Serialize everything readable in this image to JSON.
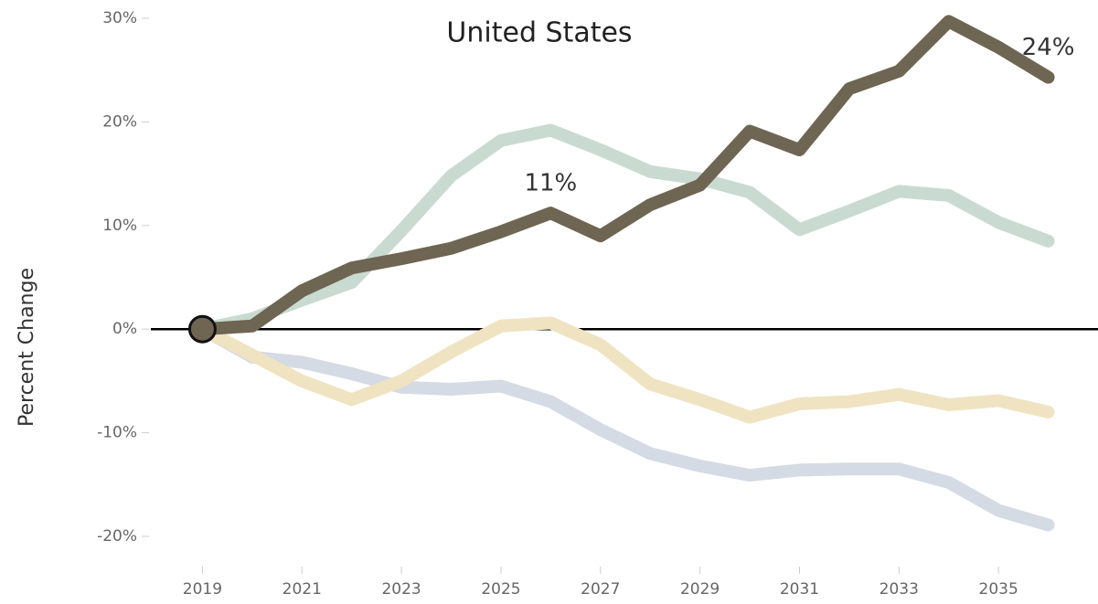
{
  "chart_data": {
    "type": "line",
    "title": "United States",
    "y_label": "Percent Change",
    "x": [
      2019,
      2020,
      2021,
      2022,
      2023,
      2024,
      2025,
      2026,
      2027,
      2028,
      2029,
      2030,
      2031,
      2032,
      2033,
      2034,
      2035,
      2036
    ],
    "series": [
      {
        "color": "#d5dbe4",
        "values": [
          0,
          -2.7,
          -3.2,
          -4.3,
          -5.6,
          -5.8,
          -5.5,
          -7.0,
          -9.7,
          -12.0,
          -13.2,
          -14.1,
          -13.6,
          -13.5,
          -13.5,
          -14.8,
          -17.5,
          -18.9
        ]
      },
      {
        "color": "#efe3c2",
        "values": [
          0,
          -2.5,
          -5.0,
          -6.8,
          -5.0,
          -2.2,
          0.3,
          0.6,
          -1.5,
          -5.3,
          -6.8,
          -8.5,
          -7.2,
          -7.0,
          -6.3,
          -7.3,
          -6.9,
          -8.0
        ]
      },
      {
        "color": "#c9dbd1",
        "values": [
          0,
          1.0,
          2.8,
          4.5,
          9.5,
          14.8,
          18.2,
          19.2,
          17.3,
          15.2,
          14.5,
          13.2,
          9.6,
          11.4,
          13.3,
          12.9,
          10.3,
          8.5
        ]
      },
      {
        "color": "#6e6553",
        "values": [
          0,
          0.3,
          3.7,
          5.9,
          6.8,
          7.8,
          9.4,
          11.2,
          9.0,
          12.0,
          13.9,
          19.1,
          17.3,
          23.2,
          24.9,
          29.7,
          27.2,
          24.3
        ],
        "value_labels": [
          null,
          null,
          null,
          null,
          null,
          null,
          null,
          "11%",
          null,
          null,
          null,
          null,
          null,
          null,
          null,
          null,
          null,
          "24%"
        ]
      }
    ],
    "xlim": [
      2018,
      2037
    ],
    "xticks": [
      2019,
      2021,
      2023,
      2025,
      2027,
      2029,
      2031,
      2033,
      2035
    ],
    "ylim": [
      -20,
      30
    ],
    "yticks": [
      {
        "value": 30,
        "label": "30%"
      },
      {
        "value": 20,
        "label": "20%"
      },
      {
        "value": 10,
        "label": "10%"
      },
      {
        "value": 0,
        "label": "0%"
      },
      {
        "value": -10,
        "label": "-10%"
      },
      {
        "value": -20,
        "label": "-20%"
      }
    ]
  }
}
